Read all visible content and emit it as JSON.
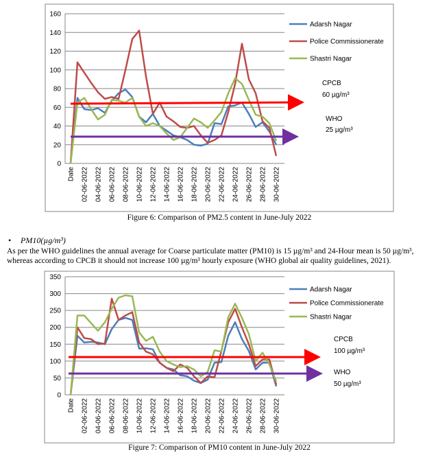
{
  "chart_data": [
    {
      "type": "line",
      "caption": "Figure 6: Comparison of PM2.5 content in June-July 2022",
      "categories": [
        "Date",
        null,
        "02-06-2022",
        null,
        "04-06-2022",
        null,
        "06-06-2022",
        null,
        "08-06-2022",
        null,
        "10-06-2022",
        null,
        "12-06-2022",
        null,
        "14-06-2022",
        null,
        "16-06-2022",
        null,
        "18-06-2022",
        null,
        "20-06-2022",
        null,
        "22-06-2022",
        null,
        "24-06-2022",
        null,
        "26-06-2022",
        null,
        "28-06-2022",
        null,
        "30-06-2022"
      ],
      "series": [
        {
          "name": "Adarsh Nagar",
          "color": "#4a7ebb",
          "values": [
            0,
            70,
            58,
            57,
            59,
            54,
            67,
            75,
            79,
            71,
            50,
            44,
            53,
            40,
            35,
            30,
            28,
            25,
            20,
            19,
            21,
            43,
            42,
            61,
            62,
            65,
            53,
            39,
            44,
            34,
            20
          ]
        },
        {
          "name": "Police Commissionerate",
          "color": "#be4b48",
          "values": [
            0,
            108,
            97,
            86,
            76,
            69,
            71,
            69,
            100,
            133,
            142,
            93,
            53,
            65,
            50,
            45,
            39,
            38,
            40,
            30,
            22,
            25,
            30,
            55,
            85,
            128,
            90,
            75,
            45,
            38,
            8
          ]
        },
        {
          "name": "Shastri Nagar",
          "color": "#98b954",
          "values": [
            0,
            65,
            70,
            58,
            47,
            52,
            68,
            67,
            65,
            70,
            50,
            40,
            43,
            40,
            32,
            25,
            28,
            38,
            48,
            44,
            38,
            46,
            55,
            75,
            91,
            85,
            68,
            52,
            50,
            43,
            24
          ]
        }
      ],
      "ylim": [
        0,
        160
      ],
      "yticks": [
        0,
        20,
        40,
        60,
        80,
        100,
        120,
        140,
        160
      ],
      "grid": true,
      "annotations": [
        "CPCB",
        "60 µg/m³",
        "WHO",
        "25 µg/m³"
      ]
    },
    {
      "type": "line",
      "caption": "Figure 7: Comparison of PM10 content in June-July 2022",
      "categories": [
        "Date",
        null,
        "02-06-2022",
        null,
        "04-06-2022",
        null,
        "06-06-2022",
        null,
        "08-06-2022",
        null,
        "10-06-2022",
        null,
        "12-06-2022",
        null,
        "14-06-2022",
        null,
        "16-06-2022",
        null,
        "18-06-2022",
        null,
        "20-06-2022",
        null,
        "22-06-2022",
        null,
        "24-06-2022",
        null,
        "26-06-2022",
        null,
        "28-06-2022",
        null,
        "30-06-2022"
      ],
      "series": [
        {
          "name": "Adarsh Nagar",
          "color": "#4a7ebb",
          "values": [
            0,
            175,
            155,
            157,
            155,
            150,
            195,
            222,
            228,
            222,
            137,
            138,
            135,
            95,
            80,
            75,
            58,
            55,
            42,
            35,
            45,
            95,
            97,
            175,
            215,
            165,
            130,
            75,
            95,
            95,
            25
          ]
        },
        {
          "name": "Police Commissionerate",
          "color": "#be4b48",
          "values": [
            0,
            200,
            168,
            165,
            150,
            152,
            285,
            222,
            235,
            245,
            155,
            128,
            120,
            95,
            80,
            70,
            90,
            80,
            55,
            35,
            55,
            52,
            130,
            215,
            255,
            200,
            150,
            85,
            105,
            105,
            30
          ]
        },
        {
          "name": "Shastri Nagar",
          "color": "#98b954",
          "values": [
            0,
            235,
            235,
            212,
            190,
            215,
            255,
            288,
            295,
            292,
            185,
            160,
            172,
            128,
            100,
            90,
            82,
            85,
            75,
            55,
            68,
            132,
            128,
            230,
            270,
            228,
            180,
            100,
            125,
            90,
            40
          ]
        }
      ],
      "ylim": [
        0,
        350
      ],
      "yticks": [
        0,
        50,
        100,
        150,
        200,
        250,
        300,
        350
      ],
      "grid": true,
      "annotations": [
        "CPCB",
        "100 µg/m³",
        "WHO",
        "50 µg/m³"
      ]
    }
  ],
  "section": {
    "heading": "PM10(µg/m³)",
    "paragraph": "As per the WHO guidelines the annual average for Coarse particulate matter (PM10) is 15 µg/m³ and 24-Hour mean is 50 µg/m³, whereas according to CPCB it should not increase 100 µg/m³ hourly exposure (WHO global air quality guidelines, 2021)."
  }
}
